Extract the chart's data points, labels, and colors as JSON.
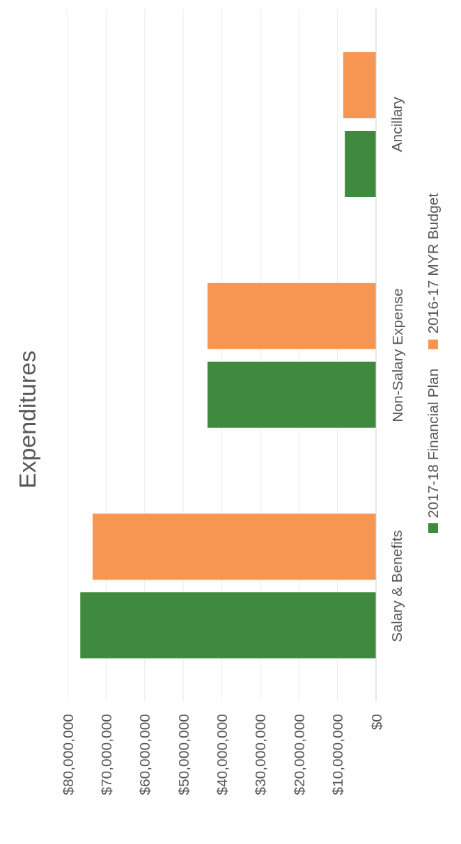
{
  "chart_data": {
    "type": "bar",
    "orientation": "horizontal",
    "title": "Expenditures",
    "categories": [
      "Ancillary",
      "Non-Salary Expense",
      "Salary & Benefits"
    ],
    "series": [
      {
        "name": "2017-18 Financial Plan",
        "color": "#3f8a3f",
        "values": [
          8100000,
          43700000,
          76700000
        ]
      },
      {
        "name": "2016-17 MYR Budget",
        "color": "#f79552",
        "values": [
          8500000,
          43700000,
          73500000
        ]
      }
    ],
    "xlim": [
      80000000,
      0
    ],
    "xticks": [
      {
        "value": 0,
        "label": "$0"
      },
      {
        "value": 10000000,
        "label": "$10,000,000"
      },
      {
        "value": 20000000,
        "label": "$20,000,000"
      },
      {
        "value": 30000000,
        "label": "$30,000,000"
      },
      {
        "value": 40000000,
        "label": "$40,000,000"
      },
      {
        "value": 50000000,
        "label": "$50,000,000"
      },
      {
        "value": 60000000,
        "label": "$60,000,000"
      },
      {
        "value": 70000000,
        "label": "$70,000,000"
      },
      {
        "value": 80000000,
        "label": "$80,000,000"
      }
    ],
    "grid": "x",
    "legend": "right"
  }
}
